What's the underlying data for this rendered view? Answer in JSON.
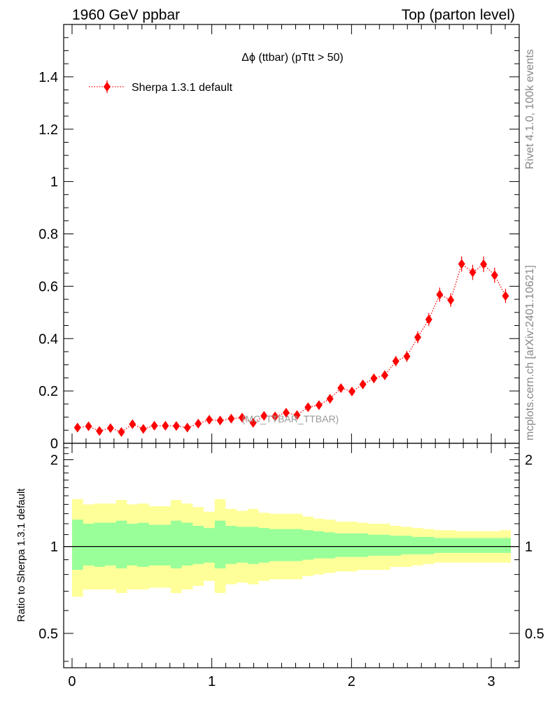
{
  "header": {
    "left_label": "1960 GeV ppbar",
    "right_label": "Top (parton level)"
  },
  "side_text": {
    "rivet": "Rivet 4.1.0,  100k events",
    "mcplots": "mcplots.cern.ch [arXiv:2401.10621]"
  },
  "chart_data": [
    {
      "type": "scatter",
      "title": "Δϕ (ttbar) (pTtt > 50)",
      "watermark": "(MC_TTBAR_TTBAR)",
      "xlabel": "",
      "ylabel": "",
      "xlim": [
        -0.06,
        3.2
      ],
      "ylim": [
        0,
        1.6
      ],
      "yticks": [
        0,
        0.2,
        0.4,
        0.6,
        0.8,
        1,
        1.2,
        1.4
      ],
      "ytick_labels": [
        "0",
        "0.2",
        "0.4",
        "0.6",
        "0.8",
        "1",
        "1.2",
        "1.4"
      ],
      "legend_position": "top-left",
      "series": [
        {
          "name": "Sherpa 1.3.1 default",
          "color": "#ff0000",
          "marker": "diamond",
          "line": "dotted",
          "x": [
            0.039,
            0.118,
            0.196,
            0.275,
            0.353,
            0.432,
            0.51,
            0.589,
            0.668,
            0.746,
            0.825,
            0.903,
            0.982,
            1.06,
            1.139,
            1.217,
            1.296,
            1.374,
            1.453,
            1.532,
            1.61,
            1.689,
            1.767,
            1.846,
            1.924,
            2.003,
            2.081,
            2.16,
            2.238,
            2.317,
            2.396,
            2.474,
            2.553,
            2.631,
            2.71,
            2.788,
            2.867,
            2.945,
            3.024,
            3.102
          ],
          "y": [
            0.06,
            0.065,
            0.047,
            0.058,
            0.043,
            0.073,
            0.055,
            0.067,
            0.067,
            0.066,
            0.06,
            0.075,
            0.09,
            0.087,
            0.094,
            0.098,
            0.078,
            0.105,
            0.103,
            0.117,
            0.108,
            0.138,
            0.146,
            0.17,
            0.211,
            0.198,
            0.225,
            0.248,
            0.26,
            0.314,
            0.332,
            0.405,
            0.473,
            0.568,
            0.547,
            0.685,
            0.653,
            0.684,
            0.642,
            0.563
          ],
          "yerr": [
            0.01,
            0.01,
            0.008,
            0.009,
            0.008,
            0.01,
            0.009,
            0.01,
            0.01,
            0.01,
            0.009,
            0.01,
            0.011,
            0.011,
            0.011,
            0.011,
            0.01,
            0.012,
            0.012,
            0.013,
            0.012,
            0.013,
            0.014,
            0.015,
            0.016,
            0.016,
            0.017,
            0.018,
            0.018,
            0.02,
            0.021,
            0.023,
            0.025,
            0.027,
            0.026,
            0.029,
            0.029,
            0.03,
            0.029,
            0.027
          ]
        }
      ]
    },
    {
      "type": "area",
      "title": "",
      "xlabel": "",
      "ylabel": "Ratio to Sherpa 1.3.1 default",
      "xlim": [
        -0.06,
        3.2
      ],
      "ylim": [
        0.38,
        2.28
      ],
      "xticks": [
        0,
        1,
        2,
        3
      ],
      "xtick_labels": [
        "0",
        "1",
        "2",
        "3"
      ],
      "yticks": [
        0.5,
        1,
        2
      ],
      "ytick_labels": [
        "0.5",
        "1",
        "2"
      ],
      "reference_line": 1,
      "bin_edges": [
        0,
        0.0785,
        0.157,
        0.2355,
        0.314,
        0.3925,
        0.471,
        0.5495,
        0.628,
        0.7065,
        0.785,
        0.8635,
        0.942,
        1.0205,
        1.099,
        1.1775,
        1.256,
        1.3345,
        1.413,
        1.4915,
        1.57,
        1.6485,
        1.727,
        1.8055,
        1.884,
        1.9625,
        2.041,
        2.1195,
        2.198,
        2.2765,
        2.355,
        2.4335,
        2.512,
        2.5905,
        2.669,
        2.7475,
        2.826,
        2.9045,
        2.983,
        3.0615,
        3.14
      ],
      "bands": [
        {
          "name": "2 sigma",
          "color": "#ffff99",
          "upper": [
            1.46,
            1.4,
            1.41,
            1.41,
            1.45,
            1.4,
            1.41,
            1.38,
            1.38,
            1.45,
            1.41,
            1.37,
            1.32,
            1.46,
            1.35,
            1.33,
            1.35,
            1.31,
            1.3,
            1.3,
            1.3,
            1.27,
            1.25,
            1.24,
            1.22,
            1.22,
            1.21,
            1.2,
            1.2,
            1.18,
            1.17,
            1.16,
            1.15,
            1.14,
            1.14,
            1.13,
            1.13,
            1.13,
            1.13,
            1.14
          ],
          "lower": [
            0.67,
            0.71,
            0.71,
            0.71,
            0.69,
            0.71,
            0.71,
            0.72,
            0.72,
            0.69,
            0.71,
            0.73,
            0.76,
            0.69,
            0.74,
            0.75,
            0.74,
            0.76,
            0.77,
            0.77,
            0.77,
            0.79,
            0.8,
            0.81,
            0.82,
            0.82,
            0.83,
            0.83,
            0.83,
            0.85,
            0.85,
            0.86,
            0.87,
            0.88,
            0.88,
            0.88,
            0.88,
            0.88,
            0.88,
            0.88
          ]
        },
        {
          "name": "1 sigma",
          "color": "#99ff99",
          "upper": [
            1.24,
            1.2,
            1.21,
            1.21,
            1.23,
            1.2,
            1.21,
            1.19,
            1.19,
            1.23,
            1.21,
            1.18,
            1.16,
            1.23,
            1.18,
            1.17,
            1.17,
            1.16,
            1.15,
            1.15,
            1.15,
            1.14,
            1.13,
            1.12,
            1.11,
            1.11,
            1.11,
            1.1,
            1.1,
            1.09,
            1.09,
            1.08,
            1.08,
            1.07,
            1.07,
            1.07,
            1.07,
            1.07,
            1.07,
            1.07
          ],
          "lower": [
            0.83,
            0.86,
            0.85,
            0.86,
            0.84,
            0.86,
            0.85,
            0.86,
            0.86,
            0.84,
            0.86,
            0.87,
            0.88,
            0.84,
            0.87,
            0.88,
            0.87,
            0.88,
            0.89,
            0.89,
            0.89,
            0.9,
            0.91,
            0.91,
            0.92,
            0.92,
            0.92,
            0.93,
            0.93,
            0.93,
            0.94,
            0.94,
            0.94,
            0.95,
            0.95,
            0.95,
            0.95,
            0.95,
            0.95,
            0.95
          ]
        }
      ]
    }
  ]
}
